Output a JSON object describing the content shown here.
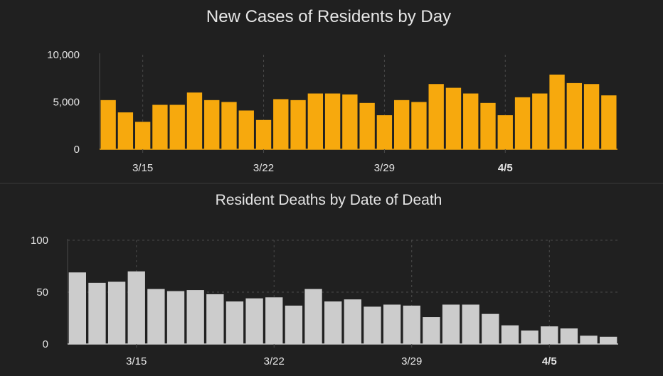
{
  "colors": {
    "background": "#202020",
    "cases_bar": "#f7a90d",
    "deaths_bar": "#cccccc",
    "text": "#e6e6e6",
    "grid": "#4a4a4a",
    "divider": "#3a3a3a"
  },
  "chart_data": [
    {
      "type": "bar",
      "title": "New Cases of Residents by Day",
      "xlabel": "",
      "ylabel": "",
      "ylim": [
        0,
        10000
      ],
      "yticks": [
        {
          "value": 0,
          "label": "0"
        },
        {
          "value": 5000,
          "label": "5,000"
        },
        {
          "value": 10000,
          "label": "10,000"
        }
      ],
      "xticks": [
        {
          "index": 2,
          "label": "3/15",
          "bold": false
        },
        {
          "index": 9,
          "label": "3/22",
          "bold": false
        },
        {
          "index": 16,
          "label": "3/29",
          "bold": false
        },
        {
          "index": 23,
          "label": "4/5",
          "bold": true
        }
      ],
      "grid": "vertical-dashed",
      "values": [
        5200,
        3900,
        2900,
        4700,
        4700,
        6000,
        5200,
        5000,
        4100,
        3100,
        5300,
        5200,
        5900,
        5900,
        5800,
        4900,
        3600,
        5200,
        5000,
        6900,
        6500,
        5900,
        4900,
        3600,
        5500,
        5900,
        7900,
        7000,
        6900,
        5700
      ]
    },
    {
      "type": "bar",
      "title": "Resident Deaths by Date of Death",
      "xlabel": "",
      "ylabel": "",
      "ylim": [
        0,
        100
      ],
      "yticks": [
        {
          "value": 0,
          "label": "0"
        },
        {
          "value": 50,
          "label": "50"
        },
        {
          "value": 100,
          "label": "100"
        }
      ],
      "xticks": [
        {
          "index": 3,
          "label": "3/15",
          "bold": false
        },
        {
          "index": 10,
          "label": "3/22",
          "bold": false
        },
        {
          "index": 17,
          "label": "3/29",
          "bold": false
        },
        {
          "index": 24,
          "label": "4/5",
          "bold": true
        }
      ],
      "grid": "dashed",
      "values": [
        69,
        59,
        60,
        70,
        53,
        51,
        52,
        48,
        41,
        44,
        45,
        37,
        53,
        41,
        43,
        36,
        38,
        37,
        26,
        38,
        38,
        29,
        18,
        13,
        17,
        15,
        8,
        7
      ]
    }
  ]
}
